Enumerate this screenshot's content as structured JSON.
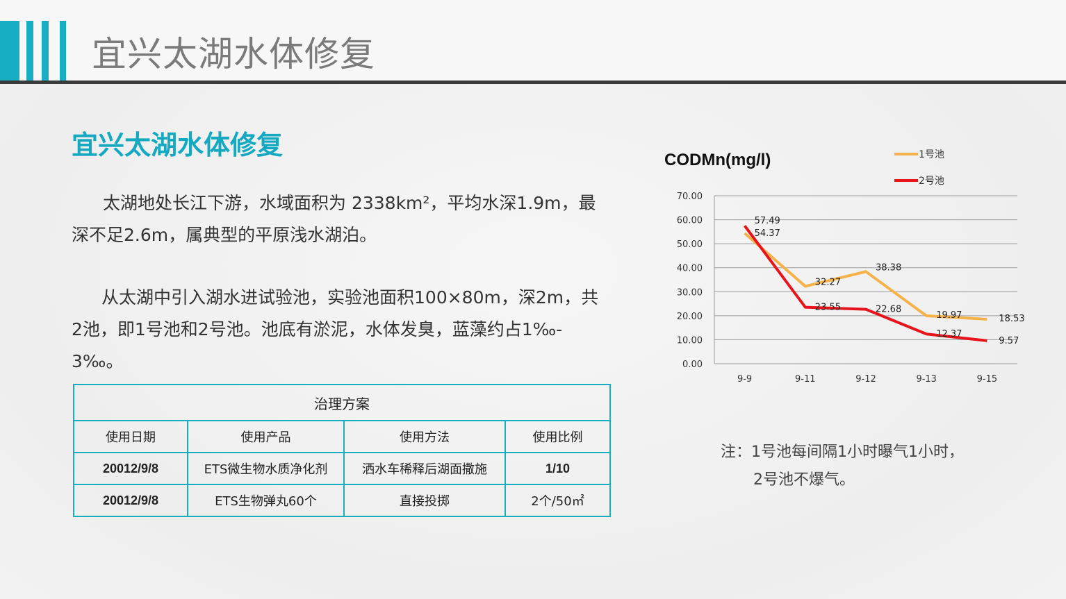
{
  "header": {
    "title": "宜兴太湖水体修复",
    "accent": "#17aec3"
  },
  "content": {
    "subtitle": "宜兴太湖水体修复",
    "para1_line1": "太湖地处长江下游，水域面积为 2338km²，平均水深1.9m，最",
    "para1_line2": "深不足2.6m，属典型的平原浅水湖泊。",
    "para2_line1": "从太湖中引入湖水进试验池，实验池面积100×80m，深2m，共",
    "para2_line2": "2池，即1号池和2号池。池底有淤泥，水体发臭，蓝藻约占1‰-",
    "para2_line3": "3‰。"
  },
  "table": {
    "title": "治理方案",
    "headers": [
      "使用日期",
      "使用产品",
      "使用方法",
      "使用比例"
    ],
    "rows": [
      [
        "20012/9/8",
        "ETS微生物水质净化剂",
        "洒水车稀释后湖面撒施",
        "1/10"
      ],
      [
        "20012/9/8",
        "ETS生物弹丸60个",
        "直接投掷",
        "2个/50㎡"
      ]
    ]
  },
  "note": {
    "line1": "注：1号池每间隔1小时曝气1小时，",
    "line2": "2号池不爆气。"
  },
  "chart_data": {
    "type": "line",
    "title": "CODMn(mg/l)",
    "categories": [
      "9-9",
      "9-11",
      "9-12",
      "9-13",
      "9-15"
    ],
    "yticks": [
      "0.00",
      "10.00",
      "20.00",
      "30.00",
      "40.00",
      "50.00",
      "60.00",
      "70.00"
    ],
    "ylim": [
      0,
      70
    ],
    "grid": true,
    "legend_position": "top-right",
    "series": [
      {
        "name": "1号池",
        "color": "#f5b24a",
        "values": [
          54.37,
          32.27,
          38.38,
          19.97,
          18.53
        ],
        "labels": [
          "54.37",
          "32.27",
          "38.38",
          "19.97",
          "18.53"
        ]
      },
      {
        "name": "2号池",
        "color": "#e8141c",
        "values": [
          57.49,
          23.55,
          22.68,
          12.37,
          9.57
        ],
        "labels": [
          "57.49",
          "23.55",
          "22.68",
          "12.37",
          "9.57"
        ]
      }
    ]
  }
}
